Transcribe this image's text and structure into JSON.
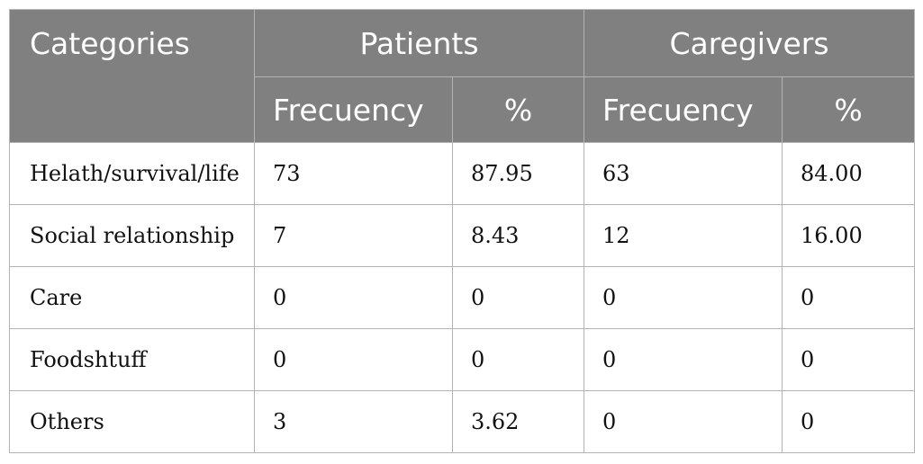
{
  "table": {
    "header": {
      "categories": "Categories",
      "patients": "Patients",
      "caregivers": "Caregivers",
      "frequency": "Frecuency",
      "percent": "%"
    },
    "rows": [
      {
        "category": "Helath/survival/life",
        "patients_freq": "73",
        "patients_pct": "87.95",
        "caregivers_freq": "63",
        "caregivers_pct": "84.00"
      },
      {
        "category": "Social relationship",
        "patients_freq": "7",
        "patients_pct": "8.43",
        "caregivers_freq": "12",
        "caregivers_pct": "16.00"
      },
      {
        "category": "Care",
        "patients_freq": "0",
        "patients_pct": "0",
        "caregivers_freq": "0",
        "caregivers_pct": "0"
      },
      {
        "category": "Foodshtuff",
        "patients_freq": "0",
        "patients_pct": "0",
        "caregivers_freq": "0",
        "caregivers_pct": "0"
      },
      {
        "category": "Others",
        "patients_freq": "3",
        "patients_pct": "3.62",
        "caregivers_freq": "0",
        "caregivers_pct": "0"
      }
    ]
  },
  "colors": {
    "header_bg": "#808080",
    "header_text": "#ffffff",
    "border": "#b3b3b3",
    "body_text": "#111111"
  }
}
